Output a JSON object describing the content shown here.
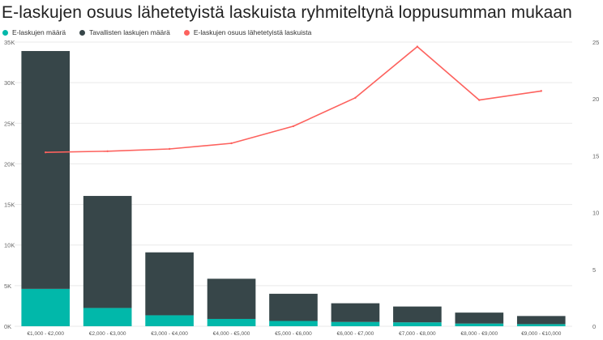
{
  "title": "E-laskujen osuus lähetetyistä laskuista ryhmiteltynä loppusumman mukaan",
  "legend": {
    "items": [
      {
        "label": "E-laskujen määrä",
        "color": "#01b8aa"
      },
      {
        "label": "Tavallisten laskujen määrä",
        "color": "#374649"
      },
      {
        "label": "E-laskujen osuus lähetetyistä laskuista",
        "color": "#fd625e"
      }
    ]
  },
  "chart_data": {
    "type": "bar",
    "stacked": true,
    "categories": [
      "€1,000 - €2,000",
      "€2,000 - €3,000",
      "€3,000 - €4,000",
      "€4,000 - €5,000",
      "€5,000 - €6,000",
      "€6,000 - €7,000",
      "€7,000 - €8,000",
      "€8,000 - €9,000",
      "€9,000 - €10,000"
    ],
    "series": [
      {
        "name": "E-laskujen määrä",
        "type": "bar",
        "axis": "left",
        "color": "#01b8aa",
        "values": [
          4600,
          2250,
          1350,
          900,
          650,
          530,
          480,
          330,
          260
        ]
      },
      {
        "name": "Tavallisten laskujen määrä",
        "type": "bar",
        "axis": "left",
        "color": "#374649",
        "values": [
          29300,
          13800,
          7750,
          4950,
          3350,
          2300,
          1950,
          1350,
          1000
        ]
      },
      {
        "name": "E-laskujen osuus lähetetyistä laskuista",
        "type": "line",
        "axis": "right",
        "color": "#fd625e",
        "values": [
          15.3,
          15.4,
          15.6,
          16.1,
          17.6,
          20.1,
          24.6,
          19.9,
          20.7
        ]
      }
    ],
    "y_left": {
      "ylim": [
        0,
        35000
      ],
      "ticks": [
        0,
        5000,
        10000,
        15000,
        20000,
        25000,
        30000,
        35000
      ],
      "tick_labels": [
        "0K",
        "5K",
        "10K",
        "15K",
        "20K",
        "25K",
        "30K",
        "35K"
      ]
    },
    "y_right": {
      "ylim": [
        0,
        25
      ],
      "ticks": [
        0,
        5,
        10,
        15,
        20,
        25
      ],
      "tick_labels": [
        "0",
        "5",
        "10",
        "15",
        "20",
        "25"
      ]
    },
    "grid": true,
    "legend_position": "top-left"
  }
}
